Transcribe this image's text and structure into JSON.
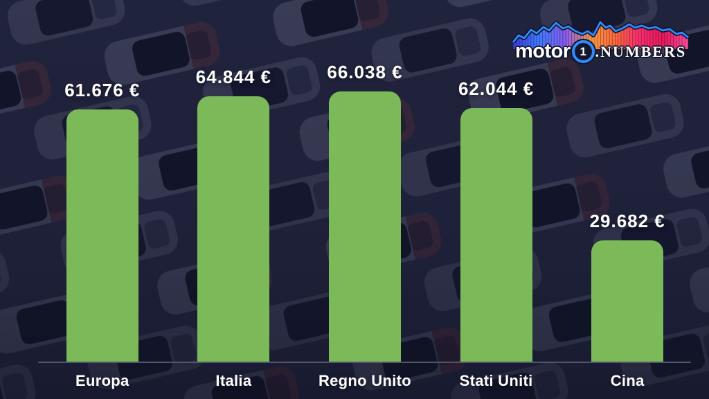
{
  "logo": {
    "motor": "motor",
    "one": "1",
    "numbers": ".NUMBERS"
  },
  "background": {
    "base_color": "#232638",
    "description": "rows of parked cars, darkened navy overlay"
  },
  "chart_data": {
    "type": "bar",
    "title": "",
    "categories": [
      "Europa",
      "Italia",
      "Regno Unito",
      "Stati Uniti",
      "Cina"
    ],
    "values": [
      61676,
      64844,
      66038,
      62044,
      29682
    ],
    "value_labels": [
      "61.676 €",
      "64.844 €",
      "66.038 €",
      "62.044 €",
      "29.682 €"
    ],
    "currency": "EUR",
    "ylim": [
      0,
      66038
    ],
    "grid": false,
    "legend": false,
    "bar_color": "#7cb958",
    "value_label_color": "#ffffff",
    "category_label_color": "#ffffff",
    "axis_line_color": "#5c6072"
  }
}
